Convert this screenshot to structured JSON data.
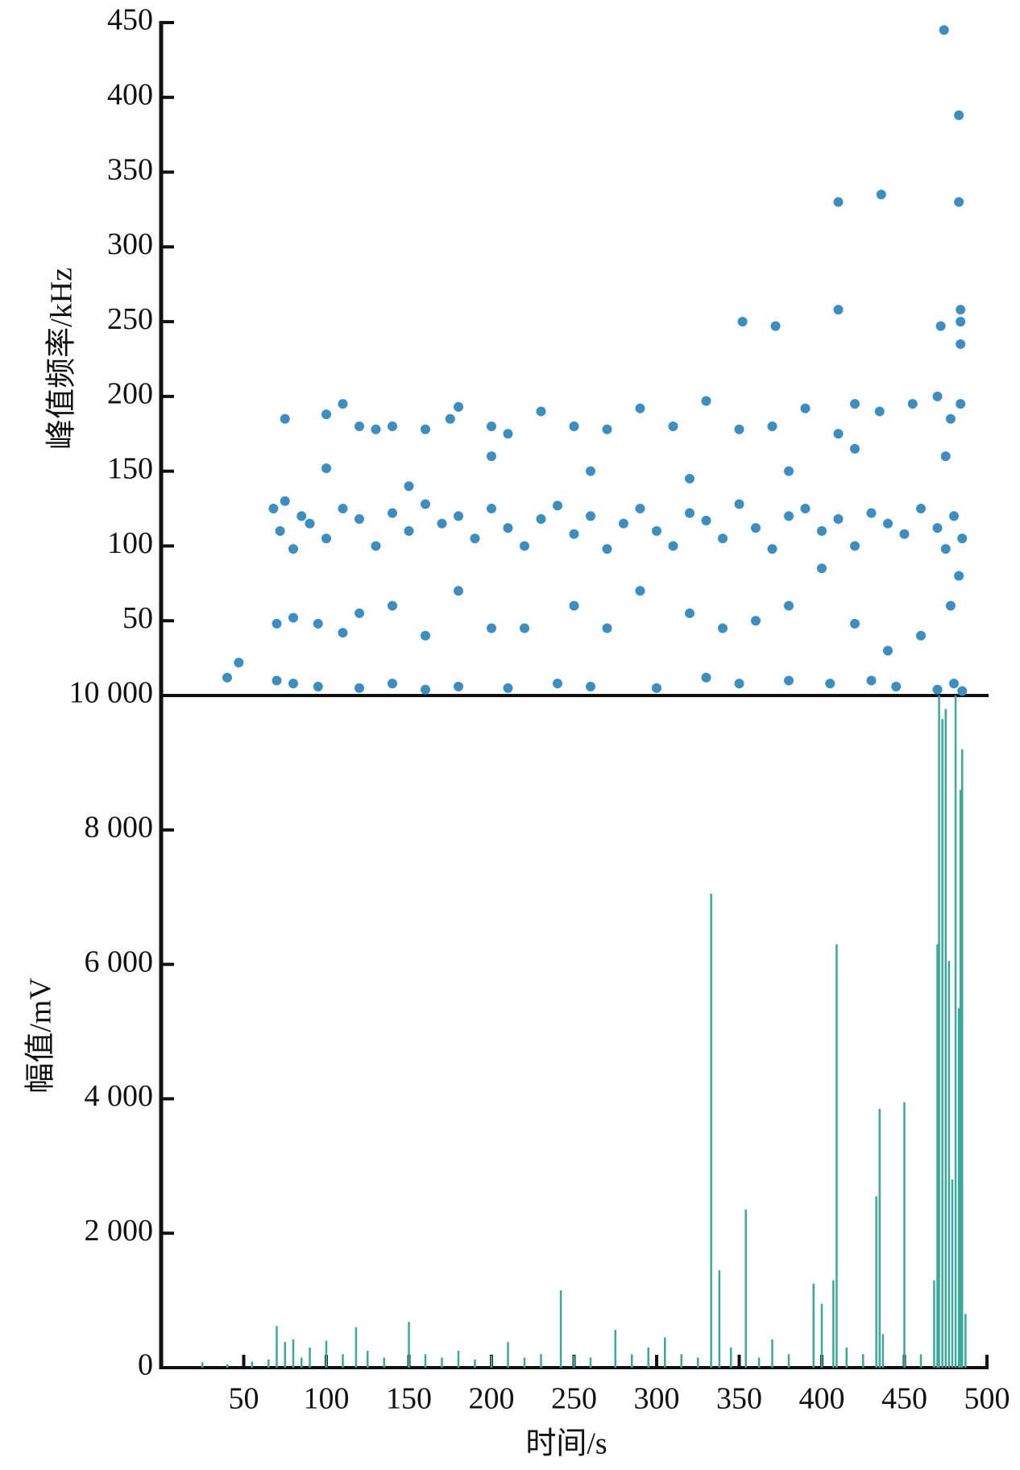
{
  "chart_data": [
    {
      "type": "scatter",
      "ylabel": "峰值频率/kHz",
      "color": "#3b8ec2",
      "xlim": [
        0,
        500
      ],
      "ylim": [
        0,
        450
      ],
      "yticks": [
        50,
        100,
        150,
        200,
        250,
        300,
        350,
        400,
        450
      ],
      "x": [
        40,
        47,
        70,
        80,
        95,
        120,
        140,
        160,
        180,
        210,
        240,
        260,
        300,
        330,
        350,
        380,
        405,
        430,
        445,
        470,
        480,
        485,
        68,
        72,
        75,
        80,
        85,
        90,
        100,
        110,
        120,
        130,
        140,
        150,
        160,
        170,
        180,
        190,
        200,
        210,
        220,
        230,
        240,
        250,
        260,
        270,
        280,
        290,
        300,
        310,
        320,
        330,
        340,
        350,
        360,
        370,
        380,
        390,
        400,
        410,
        420,
        430,
        440,
        450,
        460,
        470,
        475,
        480,
        485,
        75,
        100,
        110,
        120,
        130,
        140,
        160,
        175,
        180,
        200,
        210,
        230,
        250,
        270,
        290,
        310,
        330,
        350,
        370,
        390,
        410,
        420,
        435,
        455,
        470,
        478,
        484,
        70,
        80,
        95,
        110,
        120,
        140,
        160,
        180,
        200,
        220,
        250,
        270,
        290,
        320,
        340,
        360,
        380,
        400,
        420,
        440,
        460,
        478,
        483,
        100,
        150,
        200,
        260,
        320,
        380,
        420,
        475,
        352,
        372,
        410,
        410,
        436,
        474,
        472,
        483,
        483,
        484,
        484,
        484
      ],
      "y": [
        12,
        22,
        10,
        8,
        6,
        5,
        8,
        4,
        6,
        5,
        8,
        6,
        5,
        12,
        8,
        10,
        8,
        10,
        6,
        4,
        8,
        3,
        125,
        110,
        130,
        98,
        120,
        115,
        105,
        125,
        118,
        100,
        122,
        110,
        128,
        115,
        120,
        105,
        125,
        112,
        100,
        118,
        127,
        108,
        120,
        98,
        115,
        125,
        110,
        100,
        122,
        117,
        105,
        128,
        112,
        98,
        120,
        125,
        110,
        118,
        100,
        122,
        115,
        108,
        125,
        112,
        98,
        120,
        105,
        185,
        188,
        195,
        180,
        178,
        180,
        178,
        185,
        193,
        180,
        175,
        190,
        180,
        178,
        192,
        180,
        197,
        178,
        180,
        192,
        175,
        195,
        190,
        195,
        200,
        185,
        195,
        48,
        52,
        48,
        42,
        55,
        60,
        40,
        70,
        45,
        45,
        60,
        45,
        70,
        55,
        45,
        50,
        60,
        85,
        48,
        30,
        40,
        60,
        80,
        152,
        140,
        160,
        150,
        145,
        150,
        165,
        160,
        250,
        247,
        330,
        258,
        335,
        445,
        247,
        388,
        330,
        258,
        250,
        235
      ]
    },
    {
      "type": "stem",
      "xlabel": "时间/s",
      "ylabel": "幅值/mV",
      "color": "#3aaa98",
      "xlim": [
        0,
        500
      ],
      "xticks": [
        50,
        100,
        150,
        200,
        250,
        300,
        350,
        400,
        450,
        500
      ],
      "ylim": [
        0,
        10000
      ],
      "yticks": [
        0,
        {
          "value": 2000,
          "label": "2 000"
        },
        {
          "value": 4000,
          "label": "4 000"
        },
        {
          "value": 6000,
          "label": "6 000"
        },
        {
          "value": 8000,
          "label": "8 000"
        },
        {
          "value": 10000,
          "label": "10 000"
        }
      ],
      "x": [
        25,
        40,
        55,
        65,
        70,
        75,
        80,
        85,
        90,
        100,
        110,
        118,
        125,
        135,
        150,
        160,
        170,
        180,
        190,
        200,
        210,
        220,
        230,
        242,
        250,
        260,
        275,
        285,
        295,
        305,
        315,
        325,
        333,
        338,
        345,
        354,
        362,
        370,
        380,
        395,
        400,
        407,
        409,
        415,
        425,
        433,
        435,
        437,
        450,
        460,
        468,
        470,
        471,
        473,
        475,
        477,
        479,
        481,
        483,
        484,
        485,
        487
      ],
      "values": [
        80,
        50,
        90,
        120,
        620,
        380,
        420,
        150,
        300,
        400,
        200,
        600,
        250,
        150,
        680,
        200,
        150,
        250,
        120,
        180,
        380,
        150,
        200,
        1150,
        180,
        150,
        560,
        200,
        300,
        450,
        200,
        150,
        7050,
        1450,
        300,
        2350,
        150,
        420,
        200,
        1250,
        950,
        1300,
        6300,
        300,
        200,
        2550,
        3850,
        500,
        3950,
        200,
        1300,
        6300,
        10000,
        9650,
        9800,
        6050,
        2800,
        10000,
        5350,
        8600,
        9200,
        800
      ]
    }
  ]
}
